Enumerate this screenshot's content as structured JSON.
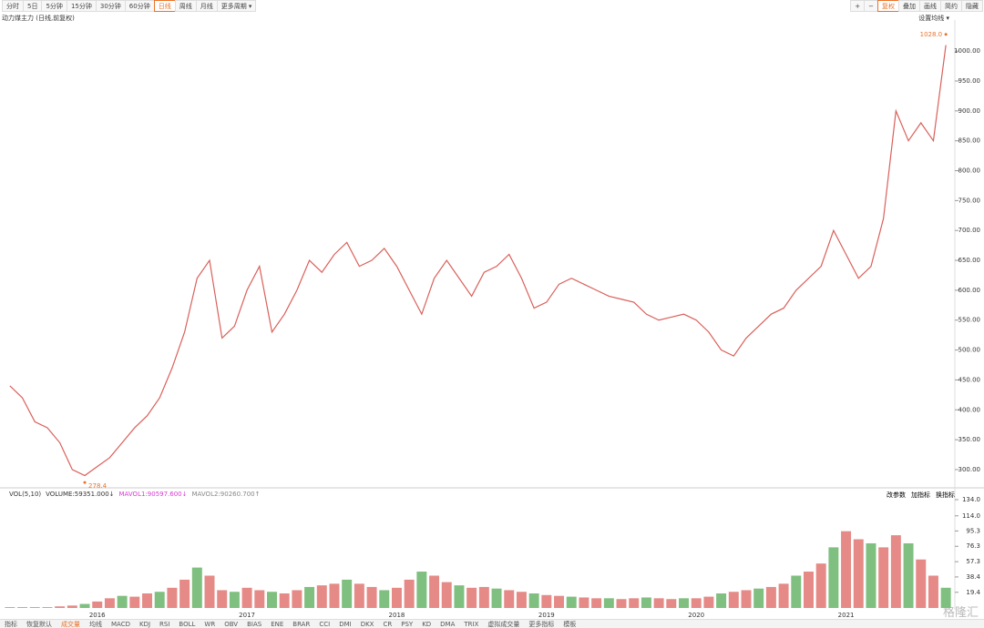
{
  "toolbar": {
    "left": [
      "分时",
      "5日",
      "5分钟",
      "15分钟",
      "30分钟",
      "60分钟",
      "日线",
      "周线",
      "月线",
      "更多周期 ▾"
    ],
    "right": [
      "+",
      "−",
      "复权",
      "叠加",
      "画线",
      "简约",
      "隐藏"
    ]
  },
  "instrument": "动力煤主力 (日线,前复权)",
  "ma_setting": "设置均线 ▾",
  "volume_legend": [
    "VOL(5,10)",
    "VOLUME:59351.000↓",
    "MAVOL1:90597.600↓",
    "MAVOL2:90260.700↑"
  ],
  "volume_buttons": [
    "改参数",
    "加指标",
    "换指标"
  ],
  "tabs": [
    "指标",
    "恢复默认",
    "成交量",
    "均线",
    "MACD",
    "KDJ",
    "RSI",
    "BOLL",
    "WR",
    "OBV",
    "BIAS",
    "ENE",
    "BRAR",
    "CCI",
    "DMI",
    "DKX",
    "CR",
    "PSY",
    "KD",
    "DMA",
    "TRIX",
    "虚拟成交量",
    "更多指标",
    "模板"
  ],
  "watermark": "格隆汇",
  "chart_data": [
    {
      "type": "line",
      "categories": [
        null,
        null,
        null,
        null,
        null,
        null,
        null,
        "2016",
        null,
        null,
        null,
        null,
        null,
        null,
        null,
        null,
        null,
        null,
        null,
        "2017",
        null,
        null,
        null,
        null,
        null,
        null,
        null,
        null,
        null,
        null,
        null,
        "2018",
        null,
        null,
        null,
        null,
        null,
        null,
        null,
        null,
        null,
        null,
        null,
        "2019",
        null,
        null,
        null,
        null,
        null,
        null,
        null,
        null,
        null,
        null,
        null,
        "2020",
        null,
        null,
        null,
        null,
        null,
        null,
        null,
        null,
        null,
        null,
        null,
        "2021",
        null,
        null,
        null,
        null,
        null,
        null,
        null,
        null
      ],
      "values": [
        440,
        420,
        380,
        370,
        345,
        300,
        290,
        305,
        320,
        345,
        370,
        390,
        420,
        470,
        530,
        620,
        650,
        520,
        540,
        600,
        640,
        530,
        560,
        600,
        650,
        630,
        660,
        680,
        640,
        650,
        670,
        640,
        600,
        560,
        620,
        650,
        620,
        590,
        630,
        640,
        660,
        620,
        570,
        580,
        610,
        620,
        610,
        600,
        590,
        585,
        580,
        560,
        550,
        555,
        560,
        550,
        530,
        500,
        490,
        520,
        540,
        560,
        570,
        600,
        620,
        640,
        700,
        660,
        620,
        640,
        720,
        900,
        850,
        880,
        850,
        1010
      ],
      "color": "#d9605a",
      "ylim": [
        271,
        1052
      ],
      "yticks": [
        {
          "value": 300,
          "label": "300.00"
        },
        {
          "value": 350,
          "label": "350.00"
        },
        {
          "value": 400,
          "label": "400.00"
        },
        {
          "value": 450,
          "label": "450.00"
        },
        {
          "value": 500,
          "label": "500.00"
        },
        {
          "value": 550,
          "label": "550.00"
        },
        {
          "value": 600,
          "label": "600.00"
        },
        {
          "value": 650,
          "label": "650.00"
        },
        {
          "value": 700,
          "label": "700.00"
        },
        {
          "value": 750,
          "label": "750.00"
        },
        {
          "value": 800,
          "label": "800.00"
        },
        {
          "value": 850,
          "label": "850.00"
        },
        {
          "value": 900,
          "label": "900.00"
        },
        {
          "value": 950,
          "label": "950.00"
        },
        {
          "value": 1000,
          "label": "1000.00"
        }
      ],
      "annotations": [
        {
          "value": 1028,
          "label": "1028.0",
          "index": 75
        },
        {
          "value": 278.4,
          "label": "278.4",
          "index": 6
        }
      ]
    },
    {
      "type": "bar",
      "values": [
        1,
        1,
        1,
        1,
        2,
        3,
        5,
        8,
        12,
        15,
        14,
        18,
        20,
        25,
        35,
        50,
        40,
        22,
        20,
        25,
        22,
        20,
        18,
        22,
        26,
        28,
        30,
        35,
        30,
        26,
        22,
        25,
        35,
        45,
        40,
        32,
        28,
        25,
        26,
        24,
        22,
        20,
        18,
        16,
        15,
        14,
        13,
        12,
        12,
        11,
        12,
        13,
        12,
        11,
        12,
        12,
        14,
        18,
        20,
        22,
        24,
        26,
        30,
        40,
        45,
        55,
        75,
        95,
        85,
        80,
        75,
        90,
        80,
        60,
        40,
        25
      ],
      "color": "#e58a86",
      "ylim": [
        0,
        138.5
      ],
      "yticks": [
        {
          "value": 19.4,
          "label": "19.4"
        },
        {
          "value": 38.4,
          "label": "38.4"
        },
        {
          "value": 57.3,
          "label": "57.3"
        },
        {
          "value": 76.3,
          "label": "76.3"
        },
        {
          "value": 95.3,
          "label": "95.3"
        },
        {
          "value": 114,
          "label": "114.0"
        },
        {
          "value": 134,
          "label": "134.0"
        }
      ]
    }
  ]
}
